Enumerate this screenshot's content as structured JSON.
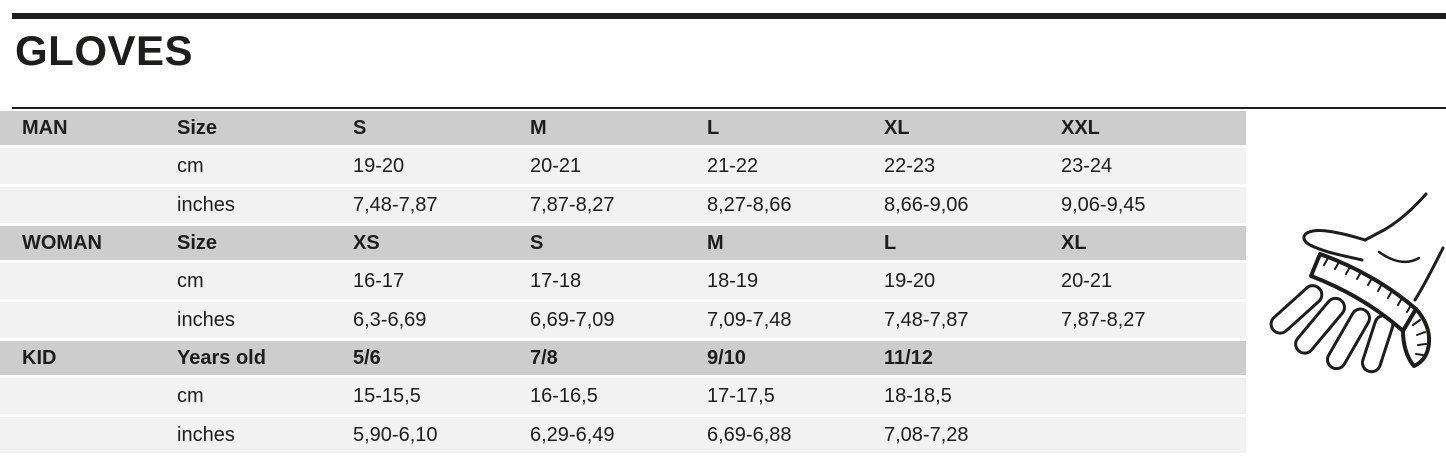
{
  "title": "GLOVES",
  "colors": {
    "ink": "#1d1d1b",
    "header_row_bg": "#cdcdcd",
    "data_row_bg": "#f2f2f2",
    "page_bg": "#ffffff"
  },
  "table": {
    "row_labels": {
      "cm": "cm",
      "inches": "inches"
    },
    "sections": [
      {
        "label": "MAN",
        "column_label": "Size",
        "sizes": [
          "S",
          "M",
          "L",
          "XL",
          "XXL"
        ],
        "cm": [
          "19-20",
          "20-21",
          "21-22",
          "22-23",
          "23-24"
        ],
        "inches": [
          "7,48-7,87",
          "7,87-8,27",
          "8,27-8,66",
          "8,66-9,06",
          "9,06-9,45"
        ]
      },
      {
        "label": "WOMAN",
        "column_label": "Size",
        "sizes": [
          "XS",
          "S",
          "M",
          "L",
          "XL"
        ],
        "cm": [
          "16-17",
          "17-18",
          "18-19",
          "19-20",
          "20-21"
        ],
        "inches": [
          "6,3-6,69",
          "6,69-7,09",
          "7,09-7,48",
          "7,48-7,87",
          "7,87-8,27"
        ]
      },
      {
        "label": "KID",
        "column_label": "Years old",
        "sizes": [
          "5/6",
          "7/8",
          "9/10",
          "11/12"
        ],
        "cm": [
          "15-15,5",
          "16-16,5",
          "17-17,5",
          "18-18,5"
        ],
        "inches": [
          "5,90-6,10",
          "6,29-6,49",
          "6,69-6,88",
          "7,08-7,28"
        ]
      }
    ]
  },
  "illustration": {
    "name": "hand-measuring-tape-illustration"
  }
}
